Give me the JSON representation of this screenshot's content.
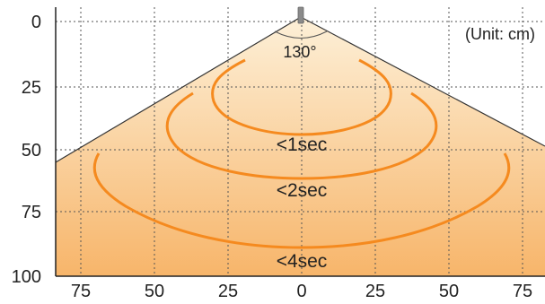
{
  "unit_label": "(Unit: cm)",
  "angle_label": "130°",
  "x_axis": {
    "ticks": [
      "75",
      "50",
      "25",
      "0",
      "25",
      "50",
      "75"
    ]
  },
  "y_axis": {
    "ticks": [
      "0",
      "25",
      "50",
      "75",
      "100"
    ]
  },
  "zones": [
    {
      "label": "<1sec"
    },
    {
      "label": "<2sec"
    },
    {
      "label": "<4sec"
    }
  ],
  "colors": {
    "fill_top": "#fdf0d8",
    "fill_bottom": "#f7b56a",
    "contour": "#f58a1f",
    "grid": "#555555",
    "sensor": "#8a8a8a"
  }
}
